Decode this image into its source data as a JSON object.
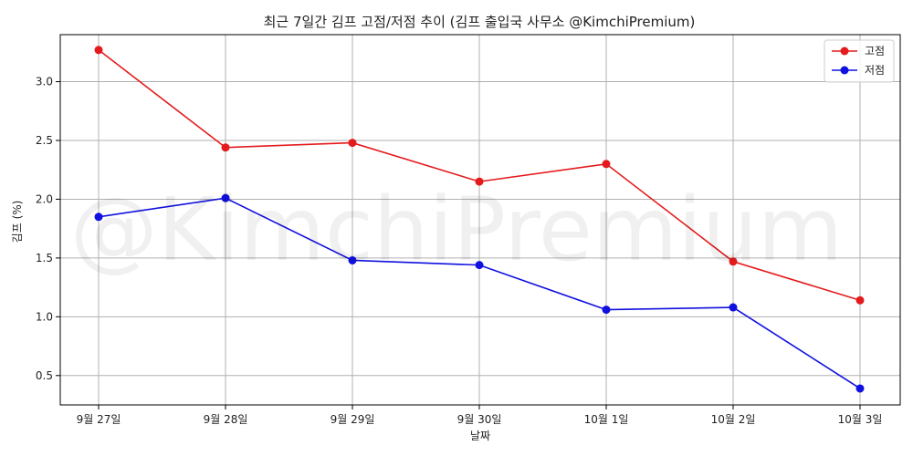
{
  "chart_data": {
    "type": "line",
    "title": "최근 7일간 김프 고점/저점 추이 (김프 출입국 사무소 @KimchiPremium)",
    "xlabel": "날짜",
    "ylabel": "김프 (%)",
    "watermark": "@KimchiPremium",
    "categories": [
      "9월 27일",
      "9월 28일",
      "9월 29일",
      "9월 30일",
      "10월 1일",
      "10월 2일",
      "10월 3일"
    ],
    "ylim": [
      0.25,
      3.4
    ],
    "yticks": [
      0.5,
      1.0,
      1.5,
      2.0,
      2.5,
      3.0
    ],
    "ytick_labels": [
      "0.5",
      "1.0",
      "1.5",
      "2.0",
      "2.5",
      "3.0"
    ],
    "grid": true,
    "legend_position": "top-right",
    "series": [
      {
        "name": "고점",
        "color": "#e41a1c",
        "values": [
          3.27,
          2.44,
          2.48,
          2.15,
          2.3,
          1.47,
          1.14
        ]
      },
      {
        "name": "저점",
        "color": "#1010e0",
        "values": [
          1.85,
          2.01,
          1.48,
          1.44,
          1.06,
          1.08,
          0.39
        ]
      }
    ]
  }
}
